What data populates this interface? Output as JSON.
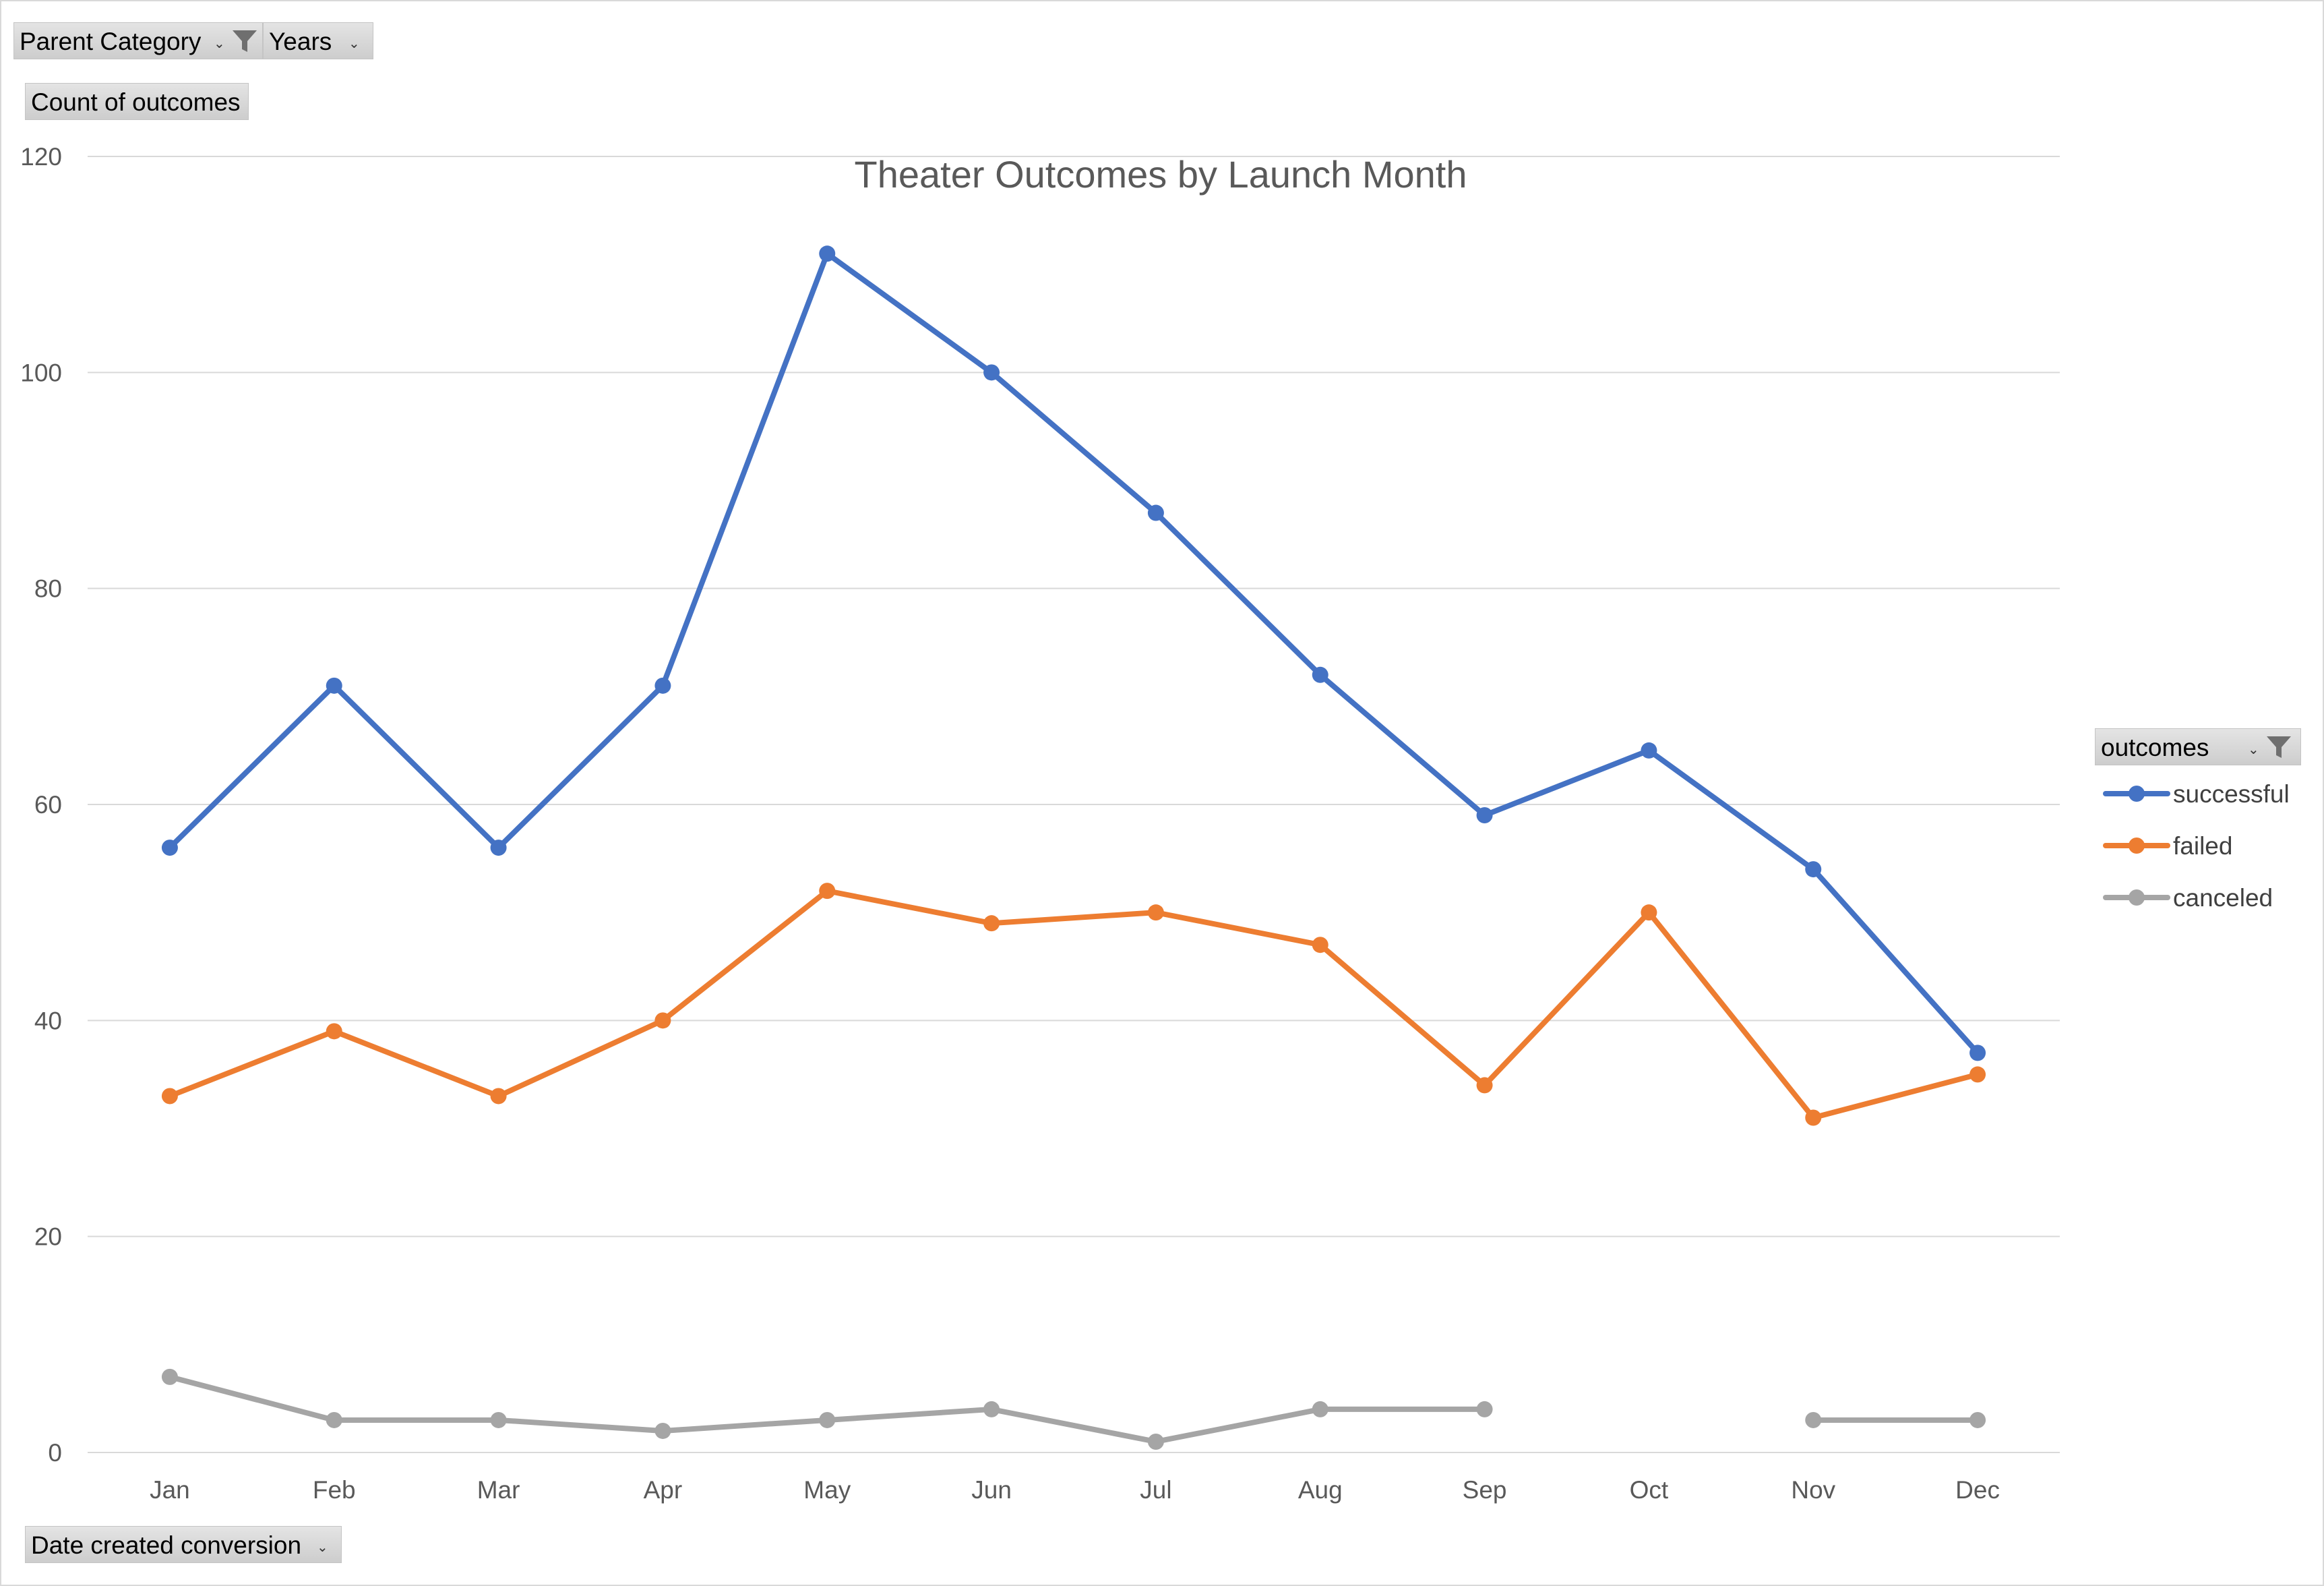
{
  "filters": {
    "parent_category_label": "Parent Category",
    "years_label": "Years",
    "value_field_label": "Count of outcomes",
    "axis_field_label": "Date created conversion",
    "legend_field_label": "outcomes"
  },
  "icons": {
    "filter": "funnel-icon",
    "dropdown": "dropdown-arrow-icon"
  },
  "colors": {
    "successful": "#4472C4",
    "failed": "#ED7D31",
    "canceled": "#A5A5A5",
    "gridline": "#D9D9D9",
    "text": "#595959"
  },
  "chart_data": {
    "type": "line",
    "title": "Theater Outcomes by Launch Month",
    "xlabel": "",
    "ylabel": "",
    "categories": [
      "Jan",
      "Feb",
      "Mar",
      "Apr",
      "May",
      "Jun",
      "Jul",
      "Aug",
      "Sep",
      "Oct",
      "Nov",
      "Dec"
    ],
    "ylim": [
      0,
      120
    ],
    "yticks": [
      0,
      20,
      40,
      60,
      80,
      100,
      120
    ],
    "grid": true,
    "legend_position": "right",
    "series": [
      {
        "name": "successful",
        "values": [
          56,
          71,
          56,
          71,
          111,
          100,
          87,
          72,
          59,
          65,
          54,
          37
        ]
      },
      {
        "name": "failed",
        "values": [
          33,
          39,
          33,
          40,
          52,
          49,
          50,
          47,
          34,
          50,
          31,
          35
        ]
      },
      {
        "name": "canceled",
        "values": [
          7,
          3,
          3,
          2,
          3,
          4,
          1,
          4,
          4,
          null,
          3,
          3
        ]
      }
    ]
  }
}
